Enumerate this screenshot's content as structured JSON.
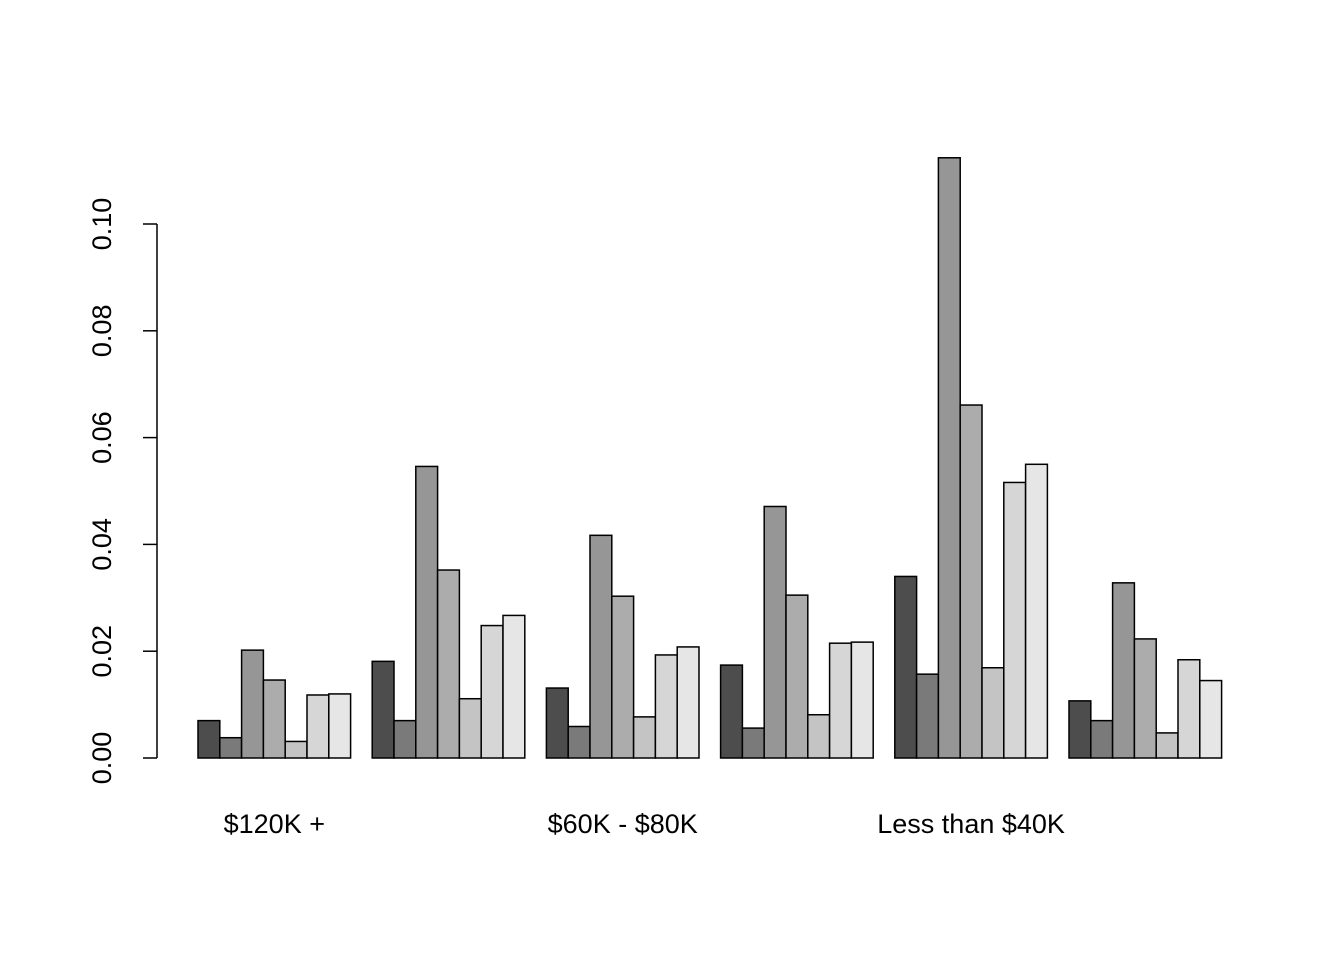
{
  "chart_data": {
    "type": "bar",
    "title": "",
    "xlabel": "",
    "ylabel": "",
    "ylim": [
      0,
      0.112
    ],
    "y_ticks": [
      0.0,
      0.02,
      0.04,
      0.06,
      0.08,
      0.1
    ],
    "y_tick_labels": [
      "0.00",
      "0.02",
      "0.04",
      "0.06",
      "0.08",
      "0.10"
    ],
    "categories": [
      "$120K +",
      "",
      "$60K - $80K",
      "",
      "Less than $40K",
      ""
    ],
    "series": [
      {
        "color": "#4d4d4d",
        "values": [
          0.007,
          0.0181,
          0.0131,
          0.0174,
          0.034,
          0.0107
        ]
      },
      {
        "color": "#7a7a7a",
        "values": [
          0.0038,
          0.007,
          0.0059,
          0.0056,
          0.0157,
          0.007
        ]
      },
      {
        "color": "#969696",
        "values": [
          0.0202,
          0.0546,
          0.0417,
          0.0471,
          0.1124,
          0.0328
        ]
      },
      {
        "color": "#acacac",
        "values": [
          0.0146,
          0.0352,
          0.0303,
          0.0305,
          0.0661,
          0.0223
        ]
      },
      {
        "color": "#c4c4c4",
        "values": [
          0.0031,
          0.0111,
          0.0077,
          0.0081,
          0.0169,
          0.0047
        ]
      },
      {
        "color": "#d6d6d6",
        "values": [
          0.0118,
          0.0248,
          0.0193,
          0.0215,
          0.0516,
          0.0184
        ]
      },
      {
        "color": "#e6e6e6",
        "values": [
          0.012,
          0.0267,
          0.0208,
          0.0217,
          0.055,
          0.0145
        ]
      }
    ],
    "grid": false,
    "legend": "none"
  }
}
